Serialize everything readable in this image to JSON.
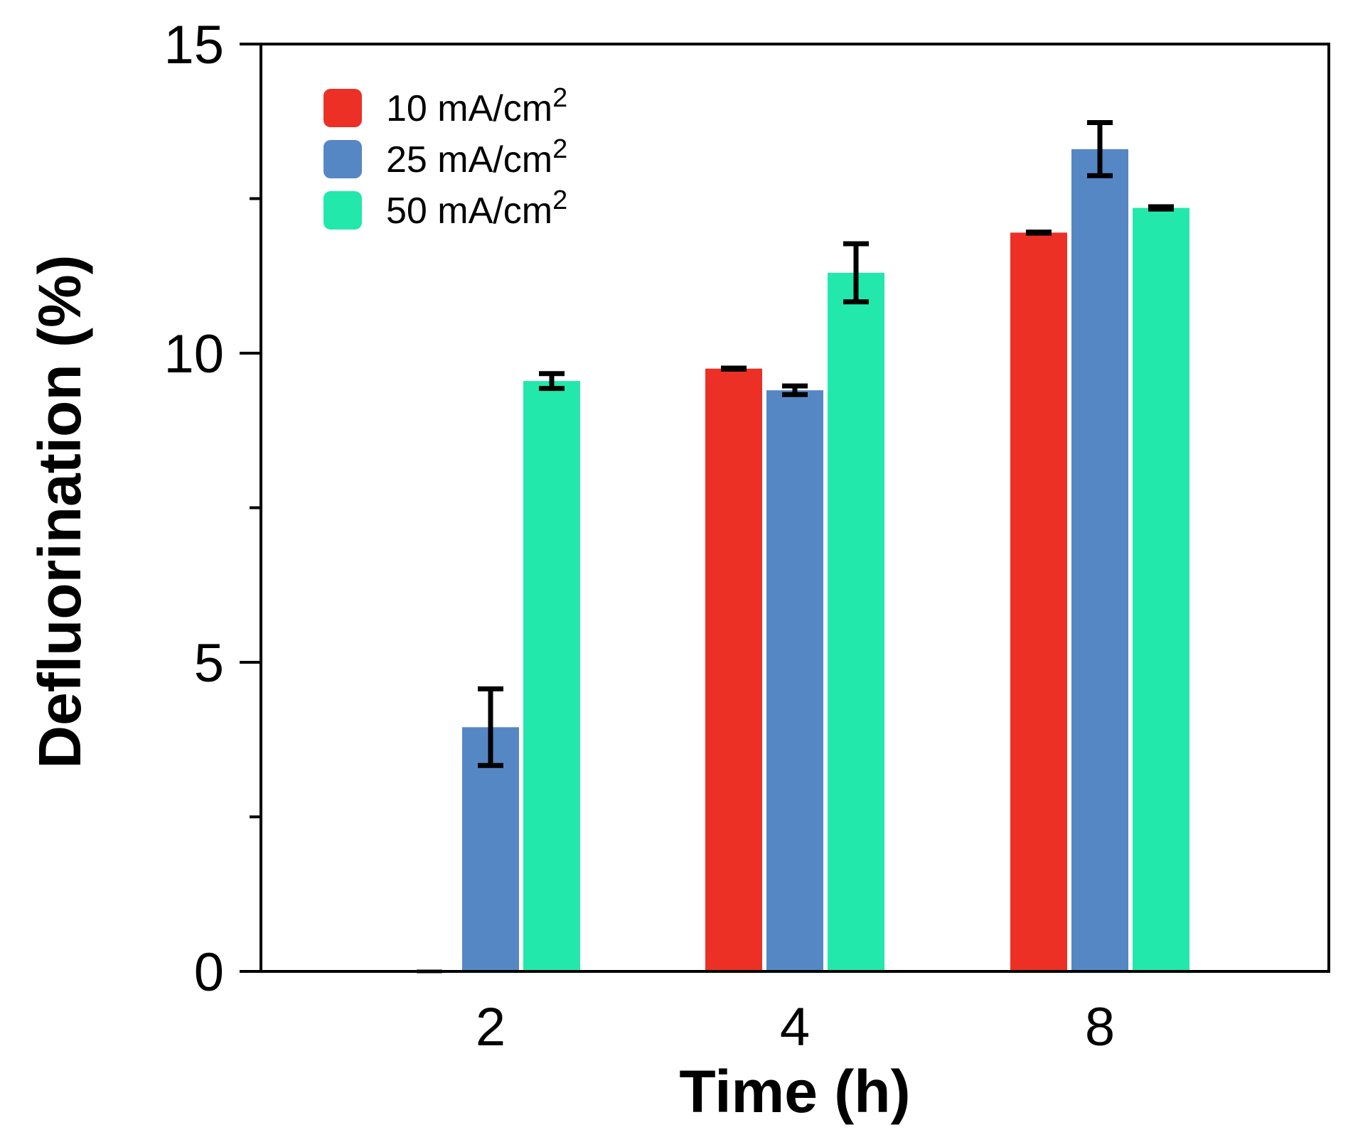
{
  "chart_data": {
    "type": "bar",
    "title": "",
    "xlabel": "Time (h)",
    "ylabel": "Defluorination (%)",
    "categories": [
      "2",
      "4",
      "8"
    ],
    "ylim": [
      0,
      15
    ],
    "yticks": [
      0,
      5,
      10,
      15
    ],
    "yminor_ticks": [
      2.5,
      7.5,
      12.5
    ],
    "grid": false,
    "legend_position": "top-left",
    "series": [
      {
        "name": "10 mA/cm",
        "sup": "2",
        "color": "#EC3026",
        "values": [
          0.0,
          9.75,
          11.95
        ],
        "errors": [
          0.0,
          0.02,
          0.02
        ]
      },
      {
        "name": "25 mA/cm",
        "sup": "2",
        "color": "#5687C5",
        "values": [
          3.95,
          9.4,
          13.3
        ],
        "errors": [
          0.62,
          0.07,
          0.43
        ]
      },
      {
        "name": "50 mA/cm",
        "sup": "2",
        "color": "#22E8AC",
        "values": [
          9.55,
          11.3,
          12.35
        ],
        "errors": [
          0.12,
          0.47,
          0.03
        ]
      }
    ]
  }
}
